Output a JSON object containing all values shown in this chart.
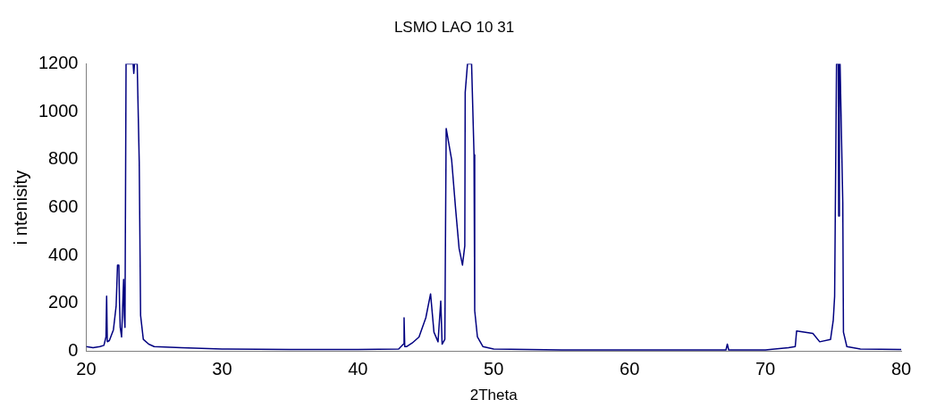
{
  "chart_data": {
    "type": "line",
    "title": "LSMO LAO 10 31",
    "xlabel": "2Theta",
    "ylabel": "i ntenisity",
    "xlim": [
      20,
      80
    ],
    "xticks": [
      20,
      30,
      40,
      50,
      60,
      70,
      80
    ],
    "ylim": [
      0,
      1200
    ],
    "yticks": [
      0,
      200,
      400,
      600,
      800,
      1000,
      1200
    ],
    "grid": false,
    "legend": false,
    "marker": "none",
    "line_style": "solid",
    "series": [
      {
        "color": "#000080",
        "x": [
          20,
          20.5,
          21,
          21.3,
          21.45,
          21.5,
          21.55,
          21.7,
          22,
          22.2,
          22.3,
          22.4,
          22.45,
          22.5,
          22.6,
          22.75,
          22.8,
          22.85,
          22.93,
          23.2,
          23.45,
          23.5,
          23.55,
          23.75,
          23.9,
          24.0,
          24.2,
          24.6,
          25,
          27,
          30,
          35,
          40,
          43,
          43.35,
          43.4,
          43.45,
          43.6,
          44,
          44.5,
          45,
          45.35,
          45.6,
          45.9,
          46.1,
          46.2,
          46.4,
          46.5,
          46.9,
          47.2,
          47.45,
          47.7,
          47.87,
          47.9,
          48.07,
          48.37,
          48.55,
          48.6,
          48.8,
          49.2,
          50,
          55,
          60,
          65,
          67.1,
          67.2,
          67.3,
          70,
          71.7,
          72.2,
          72.3,
          73.5,
          74,
          74.8,
          75,
          75.1,
          75.24,
          75.37,
          75.4,
          75.45,
          75.5,
          75.7,
          75.75,
          76,
          77,
          80
        ],
        "values": [
          20,
          15,
          20,
          25,
          60,
          230,
          40,
          45,
          90,
          190,
          360,
          360,
          200,
          100,
          60,
          300,
          150,
          100,
          1200,
          1200,
          1200,
          1160,
          1200,
          1200,
          790,
          150,
          50,
          30,
          20,
          15,
          10,
          8,
          8,
          10,
          30,
          140,
          20,
          20,
          35,
          60,
          140,
          240,
          80,
          40,
          210,
          30,
          50,
          930,
          800,
          590,
          430,
          360,
          440,
          1080,
          1200,
          1200,
          820,
          170,
          60,
          20,
          10,
          6,
          6,
          6,
          6,
          30,
          6,
          6,
          15,
          20,
          85,
          75,
          40,
          50,
          130,
          230,
          1200,
          1200,
          565,
          1200,
          1200,
          620,
          80,
          20,
          10,
          8
        ]
      }
    ]
  }
}
